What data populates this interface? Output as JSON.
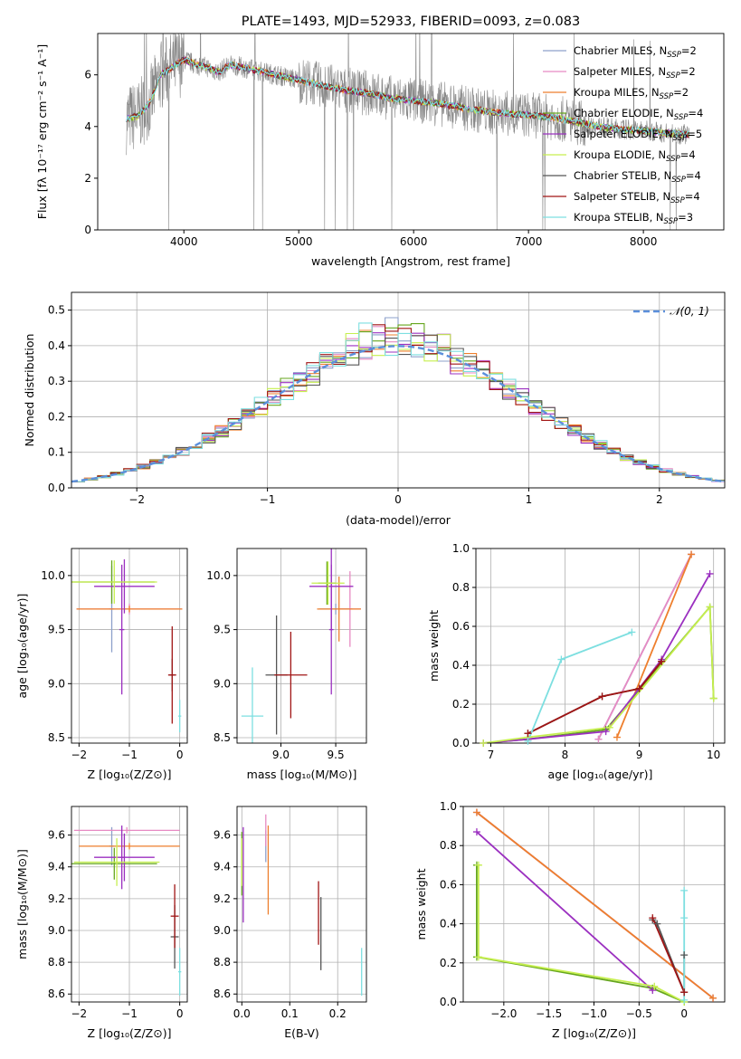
{
  "colors": {
    "Chabrier MILES": "#8da0cb",
    "Salpeter MILES": "#e78ac3",
    "Kroupa MILES": "#ee7f2d",
    "Chabrier ELODIE": "#66a61e",
    "Salpeter ELODIE": "#9b30c0",
    "Kroupa ELODIE": "#c6ef4f",
    "Chabrier STELIB": "#555555",
    "Salpeter STELIB": "#a01414",
    "Kroupa STELIB": "#7ddfe0",
    "data": "#888888",
    "normal": "#5b8fdb"
  },
  "chart_data": [
    {
      "id": "spectrum",
      "type": "line",
      "title": "PLATE=1493, MJD=52933, FIBERID=0093, z=0.083",
      "xlabel": "wavelength [Angstrom, rest frame]",
      "ylabel": "Flux [fλ 10⁻¹⁷ erg cm⁻² s⁻¹ A⁻¹]",
      "xlim": [
        3250,
        8700
      ],
      "ylim": [
        0,
        7.6
      ],
      "xticks": [
        4000,
        5000,
        6000,
        7000,
        8000
      ],
      "yticks": [
        0,
        2,
        4,
        6
      ],
      "legend_position": "top-right",
      "legend": [
        {
          "model": "Chabrier MILES",
          "label": "Chabrier MILES, N",
          "sub": "SSP",
          "suffix": "=2"
        },
        {
          "model": "Salpeter MILES",
          "label": "Salpeter MILES, N",
          "sub": "SSP",
          "suffix": "=2"
        },
        {
          "model": "Kroupa MILES",
          "label": "Kroupa MILES, N",
          "sub": "SSP",
          "suffix": "=2"
        },
        {
          "model": "Chabrier ELODIE",
          "label": "Chabrier ELODIE, N",
          "sub": "SSP",
          "suffix": "=4"
        },
        {
          "model": "Salpeter ELODIE",
          "label": "Salpeter ELODIE, N",
          "sub": "SSP",
          "suffix": "=5"
        },
        {
          "model": "Kroupa ELODIE",
          "label": "Kroupa ELODIE, N",
          "sub": "SSP",
          "suffix": "=4"
        },
        {
          "model": "Chabrier STELIB",
          "label": "Chabrier STELIB, N",
          "sub": "SSP",
          "suffix": "=4"
        },
        {
          "model": "Salpeter STELIB",
          "label": "Salpeter STELIB, N",
          "sub": "SSP",
          "suffix": "=4"
        },
        {
          "model": "Kroupa STELIB",
          "label": "Kroupa STELIB, N",
          "sub": "SSP",
          "suffix": "=3"
        }
      ],
      "continuum": {
        "x": [
          3500,
          3600,
          3700,
          3800,
          3900,
          4000,
          4100,
          4200,
          4300,
          4400,
          4600,
          4800,
          5000,
          5200,
          5400,
          5600,
          5800,
          6000,
          6200,
          6400,
          6600,
          6800,
          7000,
          7200,
          7400,
          7600,
          7800,
          8000,
          8200,
          8400
        ],
        "y": [
          4.3,
          4.4,
          4.9,
          6.0,
          6.3,
          6.6,
          6.4,
          6.3,
          6.1,
          6.4,
          6.2,
          6.0,
          5.8,
          5.6,
          5.4,
          5.3,
          5.1,
          5.0,
          4.9,
          4.75,
          4.6,
          4.5,
          4.45,
          4.35,
          4.2,
          4.0,
          3.9,
          3.85,
          3.75,
          3.7
        ]
      }
    },
    {
      "id": "residuals",
      "type": "line",
      "xlabel": "(data-model)/error",
      "ylabel": "Normed distribution",
      "xlim": [
        -2.5,
        2.5
      ],
      "ylim": [
        0,
        0.55
      ],
      "xticks": [
        -2,
        -1,
        0,
        1,
        2
      ],
      "yticks": [
        0.0,
        0.1,
        0.2,
        0.3,
        0.4,
        0.5
      ],
      "grid": true,
      "legend_position": "top-right",
      "legend_label": "𝒩(0, 1)",
      "normal": {
        "mean": 0,
        "sigma": 1
      }
    },
    {
      "id": "age_vs_z",
      "type": "scatter",
      "xlabel": "Z [log₁₀(Z/Z⊙)]",
      "ylabel": "age  [log₁₀(age/yr)]",
      "xlim": [
        -2.15,
        0.15
      ],
      "ylim": [
        8.45,
        10.25
      ],
      "xticks": [
        -2,
        -1,
        0
      ],
      "yticks": [
        8.5,
        9.0,
        9.5,
        10.0
      ],
      "grid": true,
      "points": [
        {
          "model": "Chabrier MILES",
          "x": -1.35,
          "xe": 0.05,
          "y": 9.69,
          "ye": 0.4
        },
        {
          "model": "Salpeter MILES",
          "x": -1.0,
          "xe": 1.05,
          "y": 9.69,
          "ye": 0.05
        },
        {
          "model": "Kroupa MILES",
          "x": -1.0,
          "xe": 1.05,
          "y": 9.69,
          "ye": 0.03
        },
        {
          "model": "Chabrier ELODIE",
          "x": -1.35,
          "xe": 0.85,
          "y": 9.94,
          "ye": 0.2
        },
        {
          "model": "Salpeter ELODIE",
          "x": -1.1,
          "xe": 0.6,
          "y": 9.9,
          "ye": 0.25
        },
        {
          "model": "Salpeter ELODIE",
          "x": -1.15,
          "xe": 0.05,
          "y": 9.5,
          "ye": 0.6
        },
        {
          "model": "Kroupa ELODIE",
          "x": -1.3,
          "xe": 0.85,
          "y": 9.94,
          "ye": 0.2
        },
        {
          "model": "Chabrier STELIB",
          "x": -0.15,
          "xe": 0.05,
          "y": 9.08,
          "ye": 0.15
        },
        {
          "model": "Salpeter STELIB",
          "x": -0.15,
          "xe": 0.08,
          "y": 9.08,
          "ye": 0.45
        },
        {
          "model": "Kroupa STELIB",
          "x": 0.0,
          "xe": 0.03,
          "y": 8.7,
          "ye": 0.15
        }
      ]
    },
    {
      "id": "age_vs_mass",
      "type": "scatter",
      "xlabel": "mass [log₁₀(M/M⊙)]",
      "xlim": [
        8.6,
        9.78
      ],
      "ylim": [
        8.45,
        10.25
      ],
      "xticks": [
        9.0,
        9.5
      ],
      "yticks": [
        8.5,
        9.0,
        9.5,
        10.0
      ],
      "grid": true,
      "points": [
        {
          "model": "Chabrier MILES",
          "x": 9.5,
          "xe": 0.15,
          "y": 9.69,
          "ye": 0.05
        },
        {
          "model": "Salpeter MILES",
          "x": 9.63,
          "xe": 0.1,
          "y": 9.69,
          "ye": 0.35
        },
        {
          "model": "Kroupa MILES",
          "x": 9.53,
          "xe": 0.2,
          "y": 9.69,
          "ye": 0.3
        },
        {
          "model": "Chabrier ELODIE",
          "x": 9.42,
          "xe": 0.08,
          "y": 9.93,
          "ye": 0.2
        },
        {
          "model": "Salpeter ELODIE",
          "x": 9.46,
          "xe": 0.2,
          "y": 9.9,
          "ye": 0.4
        },
        {
          "model": "Salpeter ELODIE",
          "x": 9.46,
          "xe": 0.02,
          "y": 9.5,
          "ye": 0.6
        },
        {
          "model": "Kroupa ELODIE",
          "x": 9.43,
          "xe": 0.15,
          "y": 9.93,
          "ye": 0.2
        },
        {
          "model": "Chabrier STELIB",
          "x": 8.96,
          "xe": 0.1,
          "y": 9.08,
          "ye": 0.55
        },
        {
          "model": "Salpeter STELIB",
          "x": 9.09,
          "xe": 0.15,
          "y": 9.08,
          "ye": 0.4
        },
        {
          "model": "Kroupa STELIB",
          "x": 8.74,
          "xe": 0.1,
          "y": 8.7,
          "ye": 0.45
        }
      ]
    },
    {
      "id": "weight_vs_age",
      "type": "line",
      "xlabel": "age  [log₁₀(age/yr)]",
      "ylabel": "mass weight",
      "xlim": [
        6.8,
        10.15
      ],
      "ylim": [
        0,
        1.0
      ],
      "xticks": [
        7,
        8,
        9,
        10
      ],
      "yticks": [
        0.0,
        0.2,
        0.4,
        0.6,
        0.8,
        1.0
      ],
      "grid": true,
      "series": [
        {
          "model": "Chabrier MILES",
          "x": [
            8.45,
            9.7
          ],
          "y": [
            0.02,
            0.97
          ]
        },
        {
          "model": "Salpeter MILES",
          "x": [
            8.45,
            9.7
          ],
          "y": [
            0.02,
            0.97
          ]
        },
        {
          "model": "Kroupa MILES",
          "x": [
            8.7,
            9.7
          ],
          "y": [
            0.03,
            0.97
          ]
        },
        {
          "model": "Chabrier ELODIE",
          "x": [
            6.9,
            7.5,
            8.55,
            9.95,
            10.0
          ],
          "y": [
            0.0,
            0.02,
            0.07,
            0.7,
            0.23
          ]
        },
        {
          "model": "Salpeter ELODIE",
          "x": [
            6.9,
            7.5,
            8.55,
            9.3,
            9.95
          ],
          "y": [
            0.0,
            0.02,
            0.06,
            0.43,
            0.87
          ]
        },
        {
          "model": "Kroupa ELODIE",
          "x": [
            6.9,
            7.5,
            8.6,
            9.95,
            10.0
          ],
          "y": [
            0.0,
            0.03,
            0.08,
            0.7,
            0.23
          ]
        },
        {
          "model": "Chabrier STELIB",
          "x": [
            7.5,
            8.5,
            9.0,
            9.3
          ],
          "y": [
            0.05,
            0.24,
            0.28,
            0.42
          ]
        },
        {
          "model": "Salpeter STELIB",
          "x": [
            7.5,
            8.5,
            9.0,
            9.3
          ],
          "y": [
            0.05,
            0.24,
            0.28,
            0.42
          ]
        },
        {
          "model": "Kroupa STELIB",
          "x": [
            7.5,
            7.95,
            8.9
          ],
          "y": [
            0.01,
            0.43,
            0.57
          ]
        }
      ]
    },
    {
      "id": "mass_vs_z",
      "type": "scatter",
      "xlabel": "Z [log₁₀(Z/Z⊙)]",
      "ylabel": "mass [log₁₀(M/M⊙)]",
      "xlim": [
        -2.15,
        0.15
      ],
      "ylim": [
        8.55,
        9.78
      ],
      "xticks": [
        -2,
        -1,
        0
      ],
      "yticks": [
        8.6,
        8.8,
        9.0,
        9.2,
        9.4,
        9.6
      ],
      "grid": true,
      "points": [
        {
          "model": "Chabrier MILES",
          "x": -1.35,
          "xe": 0.05,
          "y": 9.53,
          "ye": 0.12
        },
        {
          "model": "Salpeter MILES",
          "x": -1.05,
          "xe": 1.05,
          "y": 9.63,
          "ye": 0.02
        },
        {
          "model": "Kroupa MILES",
          "x": -1.0,
          "xe": 1.0,
          "y": 9.53,
          "ye": 0.02
        },
        {
          "model": "Chabrier ELODIE",
          "x": -1.3,
          "xe": 0.85,
          "y": 9.42,
          "ye": 0.1
        },
        {
          "model": "Salpeter ELODIE",
          "x": -1.1,
          "xe": 0.6,
          "y": 9.46,
          "ye": 0.15
        },
        {
          "model": "Salpeter ELODIE",
          "x": -1.15,
          "xe": 0.05,
          "y": 9.46,
          "ye": 0.2
        },
        {
          "model": "Kroupa ELODIE",
          "x": -1.25,
          "xe": 0.85,
          "y": 9.43,
          "ye": 0.15
        },
        {
          "model": "Chabrier STELIB",
          "x": -0.1,
          "xe": 0.08,
          "y": 8.96,
          "ye": 0.2
        },
        {
          "model": "Salpeter STELIB",
          "x": -0.1,
          "xe": 0.08,
          "y": 9.09,
          "ye": 0.2
        },
        {
          "model": "Kroupa STELIB",
          "x": 0.0,
          "xe": 0.03,
          "y": 8.74,
          "ye": 0.15
        }
      ]
    },
    {
      "id": "mass_vs_ebv",
      "type": "scatter",
      "xlabel": "E(B-V)",
      "xlim": [
        -0.01,
        0.26
      ],
      "ylim": [
        8.55,
        9.78
      ],
      "xticks": [
        0.0,
        0.1,
        0.2
      ],
      "yticks": [
        8.6,
        8.8,
        9.0,
        9.2,
        9.4,
        9.6
      ],
      "grid": true,
      "points": [
        {
          "model": "Chabrier MILES",
          "x": 0.05,
          "xe": 0,
          "y": 9.53,
          "ye": 0.1
        },
        {
          "model": "Salpeter MILES",
          "x": 0.05,
          "xe": 0,
          "y": 9.63,
          "ye": 0.1
        },
        {
          "model": "Kroupa MILES",
          "x": 0.055,
          "xe": 0,
          "y": 9.38,
          "ye": 0.28
        },
        {
          "model": "Chabrier ELODIE",
          "x": 0.0,
          "xe": 0,
          "y": 9.42,
          "ye": 0.2
        },
        {
          "model": "Salpeter ELODIE",
          "x": 0.003,
          "xe": 0,
          "y": 9.35,
          "ye": 0.3
        },
        {
          "model": "Kroupa ELODIE",
          "x": 0.0,
          "xe": 0,
          "y": 9.43,
          "ye": 0.15
        },
        {
          "model": "Chabrier STELIB",
          "x": 0.165,
          "xe": 0,
          "y": 8.98,
          "ye": 0.23
        },
        {
          "model": "Salpeter STELIB",
          "x": 0.16,
          "xe": 0,
          "y": 9.11,
          "ye": 0.2
        },
        {
          "model": "Kroupa STELIB",
          "x": 0.25,
          "xe": 0,
          "y": 8.74,
          "ye": 0.15
        }
      ]
    },
    {
      "id": "weight_vs_z",
      "type": "line",
      "xlabel": "Z [log₁₀(Z/Z⊙)]",
      "ylabel": "mass weight",
      "xlim": [
        -2.45,
        0.45
      ],
      "ylim": [
        0,
        1.0
      ],
      "xticks": [
        -2.0,
        -1.5,
        -1.0,
        -0.5,
        0.0
      ],
      "yticks": [
        0.0,
        0.2,
        0.4,
        0.6,
        0.8,
        1.0
      ],
      "grid": true,
      "series": [
        {
          "model": "Chabrier MILES",
          "x": [
            -2.3,
            0.32
          ],
          "y": [
            0.97,
            0.02
          ]
        },
        {
          "model": "Salpeter MILES",
          "x": [
            -2.3,
            0.32
          ],
          "y": [
            0.97,
            0.02
          ]
        },
        {
          "model": "Kroupa MILES",
          "x": [
            -2.3,
            0.32
          ],
          "y": [
            0.97,
            0.02
          ]
        },
        {
          "model": "Chabrier ELODIE",
          "x": [
            -2.3,
            -2.3,
            -0.35,
            0.0
          ],
          "y": [
            0.7,
            0.23,
            0.07,
            0.0
          ]
        },
        {
          "model": "Salpeter ELODIE",
          "x": [
            -2.3,
            -0.35
          ],
          "y": [
            0.87,
            0.06
          ]
        },
        {
          "model": "Kroupa ELODIE",
          "x": [
            -2.28,
            -2.28,
            -0.33,
            0.0
          ],
          "y": [
            0.7,
            0.23,
            0.08,
            0.0
          ]
        },
        {
          "model": "Chabrier STELIB",
          "x": [
            -0.35,
            -0.3,
            0.0,
            0.0
          ],
          "y": [
            0.42,
            0.4,
            0.05,
            0.24
          ]
        },
        {
          "model": "Salpeter STELIB",
          "x": [
            -0.35,
            0.0
          ],
          "y": [
            0.43,
            0.05
          ]
        },
        {
          "model": "Kroupa STELIB",
          "x": [
            0.0,
            0.0,
            0.0
          ],
          "y": [
            0.01,
            0.43,
            0.57
          ]
        }
      ]
    }
  ]
}
